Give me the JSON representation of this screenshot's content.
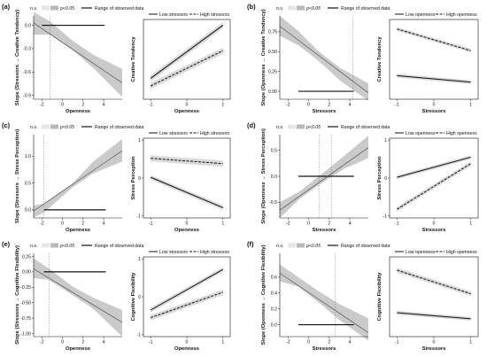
{
  "chart_data": [
    {
      "panel": "(a)",
      "type": "line",
      "legend": {
        "ns": "n.s.",
        "sig": "p<0.05",
        "range": "Range of observed data"
      },
      "xlabel": "Openness",
      "ylabel": "Slope (Stressors → Creative Tendency)",
      "xlim": [
        -2.8,
        5.8
      ],
      "ylim": [
        -0.95,
        0.12
      ],
      "xticks": [
        -2,
        0,
        2,
        4
      ],
      "yticks": [
        0.0,
        -0.3,
        -0.6,
        -0.9
      ],
      "ytick_labels": [
        "0.0",
        "-0.3",
        "-0.6",
        "-0.9"
      ],
      "slope_line": {
        "x": [
          -2.8,
          5.8
        ],
        "y": [
          0.03,
          -0.74
        ]
      },
      "ci_band": {
        "x": [
          -2.8,
          -1.2,
          1.0,
          3.0,
          5.8
        ],
        "lower": [
          -0.12,
          -0.12,
          -0.32,
          -0.55,
          -0.92
        ],
        "upper": [
          0.17,
          0.05,
          -0.2,
          -0.38,
          -0.56
        ]
      },
      "significance_threshold": -1.2,
      "observed_range": [
        -2.0,
        4.1
      ]
    },
    {
      "panel": "(a)",
      "type": "line",
      "legend": [
        "Low stressors",
        "High stressors"
      ],
      "xlabel": "Openness",
      "ylabel": "Creative Tendency",
      "xlim": [
        -1.2,
        1.2
      ],
      "ylim": [
        -1,
        1.1
      ],
      "xticks": [
        -1,
        0,
        1
      ],
      "series": [
        {
          "name": "Low stressors",
          "x": [
            -1,
            1
          ],
          "y": [
            -0.45,
            0.95
          ],
          "ci": 0.08
        },
        {
          "name": "High stressors",
          "x": [
            -1,
            1
          ],
          "y": [
            -0.65,
            0.28
          ],
          "ci": 0.08
        }
      ]
    },
    {
      "panel": "(b)",
      "type": "line",
      "legend": {
        "ns": "n.s.",
        "sig": "p<0.05",
        "range": "Range of observed data"
      },
      "xlabel": "Stressors",
      "ylabel": "Slope (Openness → Creative Tendency)",
      "xlim": [
        -2.8,
        5.8
      ],
      "ylim": [
        -0.1,
        0.95
      ],
      "xticks": [
        -2,
        0,
        2,
        4
      ],
      "yticks": [
        0.0,
        0.25,
        0.5,
        0.75
      ],
      "ytick_labels": [
        "0.00",
        "0.25",
        "0.50",
        "0.75"
      ],
      "slope_line": {
        "x": [
          -2.8,
          5.8
        ],
        "y": [
          0.82,
          -0.02
        ]
      },
      "ci_band": {
        "x": [
          -2.8,
          -1.0,
          1.0,
          3.0,
          5.8
        ],
        "lower": [
          0.7,
          0.58,
          0.38,
          0.14,
          -0.12
        ],
        "upper": [
          0.95,
          0.76,
          0.5,
          0.3,
          0.1
        ]
      },
      "significance_threshold": 4.3,
      "observed_range": [
        -1.0,
        4.4
      ]
    },
    {
      "panel": "(b)",
      "type": "line",
      "legend": [
        "Low openness",
        "High openness"
      ],
      "xlabel": "Stressors",
      "ylabel": "Creative Tendency",
      "xlim": [
        -1.2,
        1.2
      ],
      "ylim": [
        -1,
        1.1
      ],
      "xticks": [
        -1,
        0,
        1
      ],
      "series": [
        {
          "name": "Low openness",
          "x": [
            -1,
            1
          ],
          "y": [
            -0.38,
            -0.55
          ],
          "ci": 0.05
        },
        {
          "name": "High openness",
          "x": [
            -1,
            1
          ],
          "y": [
            0.85,
            0.28
          ],
          "ci": 0.05
        }
      ]
    },
    {
      "panel": "(c)",
      "type": "line",
      "legend": {
        "ns": "n.s.",
        "sig": "p<0.05",
        "range": "Range of observed data"
      },
      "xlabel": "Openness",
      "ylabel": "Slope (Stressors → Stress Perception)",
      "xlim": [
        -2.8,
        5.8
      ],
      "ylim": [
        -0.15,
        1.4
      ],
      "xticks": [
        -2,
        0,
        2,
        4
      ],
      "yticks": [
        0.0,
        0.5,
        1.0
      ],
      "ytick_labels": [
        "0.0",
        "0.5",
        "1.0"
      ],
      "slope_line": {
        "x": [
          -2.8,
          5.8
        ],
        "y": [
          -0.02,
          1.1
        ]
      },
      "ci_band": {
        "x": [
          -2.8,
          -1.8,
          1.0,
          3.0,
          5.8
        ],
        "lower": [
          -0.14,
          -0.05,
          0.42,
          0.68,
          0.9
        ],
        "upper": [
          0.08,
          0.12,
          0.5,
          0.9,
          1.32
        ]
      },
      "significance_threshold": -1.8,
      "observed_range": [
        -1.8,
        4.2
      ]
    },
    {
      "panel": "(c)",
      "type": "line",
      "legend": [
        "Low stressors",
        "High stressors"
      ],
      "xlabel": "Openness",
      "ylabel": "Stress Perception",
      "xlim": [
        -1.2,
        1.2
      ],
      "ylim": [
        -1.05,
        1.05
      ],
      "xticks": [
        -1,
        0,
        1
      ],
      "yticks": [
        -1,
        0,
        1
      ],
      "series": [
        {
          "name": "Low stressors",
          "x": [
            -1,
            1
          ],
          "y": [
            0.02,
            -0.78
          ],
          "ci": 0.06
        },
        {
          "name": "High stressors",
          "x": [
            -1,
            1
          ],
          "y": [
            0.52,
            0.38
          ],
          "ci": 0.08
        }
      ]
    },
    {
      "panel": "(d)",
      "type": "line",
      "legend": {
        "ns": "n.s.",
        "sig": "p<0.05",
        "range": "Range of observed data"
      },
      "xlabel": "Stressors",
      "ylabel": "Slope (Openness → Stress Perception)",
      "xlim": [
        -2.8,
        5.8
      ],
      "ylim": [
        -0.8,
        0.8
      ],
      "xticks": [
        -2,
        0,
        2,
        4
      ],
      "yticks": [
        -0.5,
        0.0,
        0.5
      ],
      "ytick_labels": [
        "-0.5",
        "0.0",
        "0.5"
      ],
      "slope_line": {
        "x": [
          -2.8,
          5.8
        ],
        "y": [
          -0.65,
          0.55
        ]
      },
      "ci_band": {
        "x": [
          -2.8,
          -0.8,
          1.5,
          3.5,
          5.8
        ],
        "lower": [
          -0.8,
          -0.42,
          -0.1,
          0.15,
          0.35
        ],
        "upper": [
          -0.5,
          -0.28,
          0.08,
          0.4,
          0.78
        ]
      },
      "significance_threshold": [
        1.0,
        2.2
      ],
      "observed_range": [
        -1.0,
        4.4
      ]
    },
    {
      "panel": "(d)",
      "type": "line",
      "legend": [
        "Low openness",
        "High openness"
      ],
      "xlabel": "Stressors",
      "ylabel": "Stress Perception",
      "xlim": [
        -1.2,
        1.2
      ],
      "ylim": [
        -1.05,
        1.05
      ],
      "xticks": [
        -1,
        0,
        1
      ],
      "yticks": [
        -1,
        0,
        1
      ],
      "series": [
        {
          "name": "Low openness",
          "x": [
            -1,
            1
          ],
          "y": [
            0.02,
            0.55
          ],
          "ci": 0.05
        },
        {
          "name": "High openness",
          "x": [
            -1,
            1
          ],
          "y": [
            -0.82,
            0.38
          ],
          "ci": 0.06
        }
      ]
    },
    {
      "panel": "(e)",
      "type": "line",
      "legend": {
        "ns": "n.s.",
        "sig": "p<0.05",
        "range": "Range of observed data"
      },
      "xlabel": "Openness",
      "ylabel": "Slope (Stressors → Cognitive Flexibility)",
      "xlim": [
        -2.8,
        5.8
      ],
      "ylim": [
        -1.05,
        0.3
      ],
      "xticks": [
        -2,
        0,
        2,
        4
      ],
      "yticks": [
        0.25,
        0.0,
        -0.25,
        -0.5,
        -0.75,
        -1.0
      ],
      "ytick_labels": [
        "0.25",
        "0.00",
        "-0.25",
        "-0.50",
        "-0.75",
        "-1.00"
      ],
      "slope_line": {
        "x": [
          -2.8,
          5.8
        ],
        "y": [
          0.05,
          -0.82
        ]
      },
      "ci_band": {
        "x": [
          -2.8,
          -1.3,
          1.0,
          3.0,
          5.8
        ],
        "lower": [
          -0.1,
          -0.13,
          -0.38,
          -0.6,
          -1.05
        ],
        "upper": [
          0.22,
          0.05,
          -0.24,
          -0.42,
          -0.62
        ]
      },
      "significance_threshold": -1.3,
      "observed_range": [
        -1.8,
        4.2
      ]
    },
    {
      "panel": "(e)",
      "type": "line",
      "legend": [
        "Low stressors",
        "High stressors"
      ],
      "xlabel": "Openness",
      "ylabel": "Cognitive Flexibility",
      "xlim": [
        -1.2,
        1.2
      ],
      "ylim": [
        -1.05,
        1.05
      ],
      "xticks": [
        -1,
        0,
        1
      ],
      "yticks": [
        -1,
        0,
        1
      ],
      "series": [
        {
          "name": "Low stressors",
          "x": [
            -1,
            1
          ],
          "y": [
            -0.35,
            0.72
          ],
          "ci": 0.06
        },
        {
          "name": "High stressors",
          "x": [
            -1,
            1
          ],
          "y": [
            -0.55,
            0.12
          ],
          "ci": 0.07
        }
      ]
    },
    {
      "panel": "(f)",
      "type": "line",
      "legend": {
        "ns": "n.s.",
        "sig": "p<0.05",
        "range": "Range of observed data"
      },
      "xlabel": "Stressors",
      "ylabel": "Slope (Openness → Cognitive Flexibility)",
      "xlim": [
        -2.8,
        5.8
      ],
      "ylim": [
        -0.15,
        0.9
      ],
      "xticks": [
        -2,
        0,
        2,
        4
      ],
      "yticks": [
        0.0,
        0.2,
        0.4,
        0.6
      ],
      "ytick_labels": [
        "0.0",
        "0.2",
        "0.4",
        "0.6"
      ],
      "slope_line": {
        "x": [
          -2.8,
          5.8
        ],
        "y": [
          0.65,
          -0.1
        ]
      },
      "ci_band": {
        "x": [
          -2.8,
          -1.0,
          1.0,
          3.0,
          5.8
        ],
        "lower": [
          0.55,
          0.48,
          0.28,
          0.06,
          -0.2
        ],
        "upper": [
          0.76,
          0.6,
          0.42,
          0.26,
          0.08
        ]
      },
      "significance_threshold": 2.6,
      "observed_range": [
        -1.0,
        4.4
      ]
    },
    {
      "panel": "(f)",
      "type": "line",
      "legend": [
        "Low openness",
        "High openness"
      ],
      "xlabel": "Stressors",
      "ylabel": "Cognitive Flexibility",
      "xlim": [
        -1.2,
        1.2
      ],
      "ylim": [
        -1.05,
        1.05
      ],
      "xticks": [
        -1,
        0,
        1
      ],
      "series": [
        {
          "name": "Low openness",
          "x": [
            -1,
            1
          ],
          "y": [
            -0.42,
            -0.58
          ],
          "ci": 0.05
        },
        {
          "name": "High openness",
          "x": [
            -1,
            1
          ],
          "y": [
            0.7,
            0.08
          ],
          "ci": 0.06
        }
      ]
    }
  ]
}
